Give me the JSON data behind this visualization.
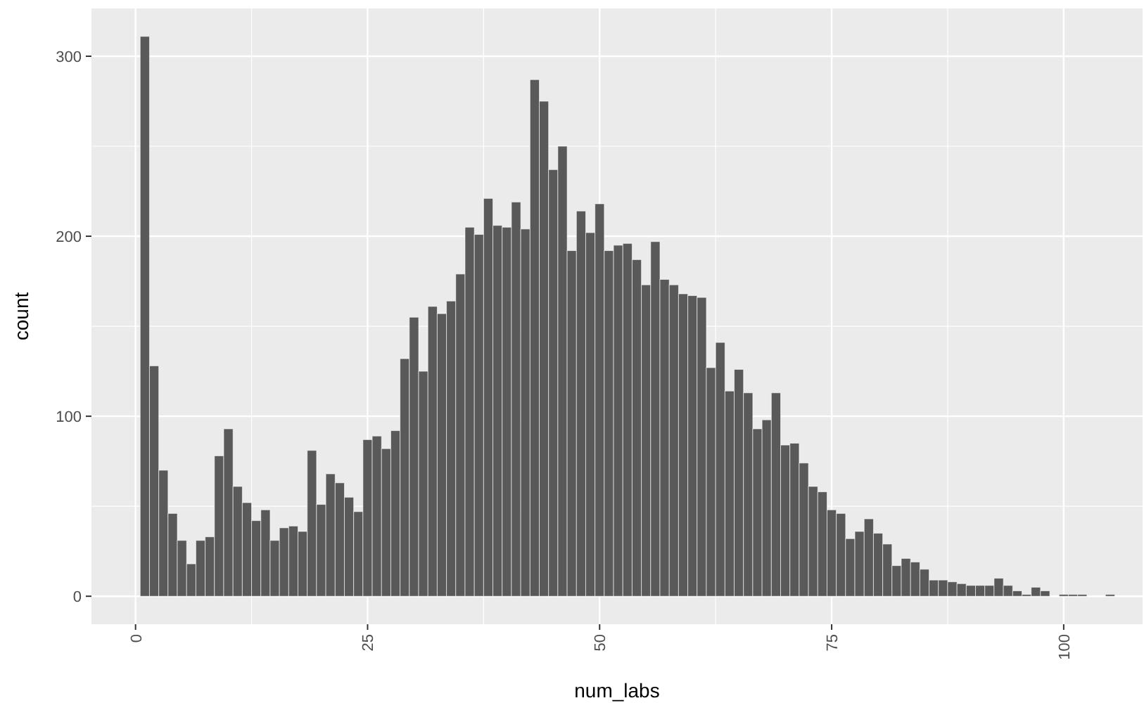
{
  "chart_data": {
    "type": "histogram",
    "xlabel": "num_labs",
    "ylabel": "count",
    "bins": [
      0.5,
      1.5,
      2.5,
      3.5,
      4.5,
      5.5,
      6.5,
      7.5,
      8.5,
      9.5,
      10.5,
      11.5,
      12.5,
      13.5,
      14.5,
      15.5,
      16.5,
      17.5,
      18.5,
      19.5,
      20.5,
      21.5,
      22.5,
      23.5,
      24.5,
      25.5,
      26.5,
      27.5,
      28.5,
      29.5,
      30.5,
      31.5,
      32.5,
      33.5,
      34.5,
      35.5,
      36.5,
      37.5,
      38.5,
      39.5,
      40.5,
      41.5,
      42.5,
      43.5,
      44.5,
      45.5,
      46.5,
      47.5,
      48.5,
      49.5,
      50.5,
      51.5,
      52.5,
      53.5,
      54.5,
      55.5,
      56.5,
      57.5,
      58.5,
      59.5,
      60.5,
      61.5,
      62.5,
      63.5,
      64.5,
      65.5,
      66.5,
      67.5,
      68.5,
      69.5,
      70.5,
      71.5,
      72.5,
      73.5,
      74.5,
      75.5,
      76.5,
      77.5,
      78.5,
      79.5,
      80.5,
      81.5,
      82.5,
      83.5,
      84.5,
      85.5,
      86.5,
      87.5,
      88.5,
      89.5,
      90.5,
      91.5,
      92.5,
      93.5,
      94.5,
      95.5,
      96.5,
      97.5,
      98.5,
      99.5,
      100.5,
      101.5,
      102.5,
      103.5,
      104.5,
      105.5
    ],
    "values": [
      311,
      128,
      70,
      46,
      31,
      18,
      31,
      33,
      78,
      93,
      61,
      52,
      42,
      48,
      31,
      38,
      39,
      36,
      81,
      51,
      68,
      63,
      55,
      47,
      87,
      89,
      82,
      92,
      132,
      155,
      125,
      161,
      157,
      164,
      179,
      205,
      201,
      221,
      206,
      205,
      219,
      204,
      287,
      275,
      237,
      250,
      192,
      214,
      202,
      218,
      192,
      195,
      196,
      187,
      173,
      197,
      176,
      173,
      168,
      167,
      166,
      127,
      141,
      114,
      126,
      113,
      93,
      98,
      113,
      84,
      85,
      74,
      61,
      58,
      48,
      46,
      32,
      36,
      43,
      35,
      29,
      17,
      21,
      19,
      15,
      9,
      9,
      8,
      7,
      6,
      6,
      6,
      10,
      6,
      3,
      1,
      5,
      3,
      0,
      1,
      1,
      1,
      0,
      0,
      1
    ],
    "color": "#595959",
    "xlim": [
      -4.75,
      108.5
    ],
    "xticks": [
      0,
      25,
      50,
      75,
      100
    ],
    "ylim": [
      -15.55,
      326.55
    ],
    "yticks": [
      0,
      100,
      200,
      300
    ],
    "grid": true
  }
}
